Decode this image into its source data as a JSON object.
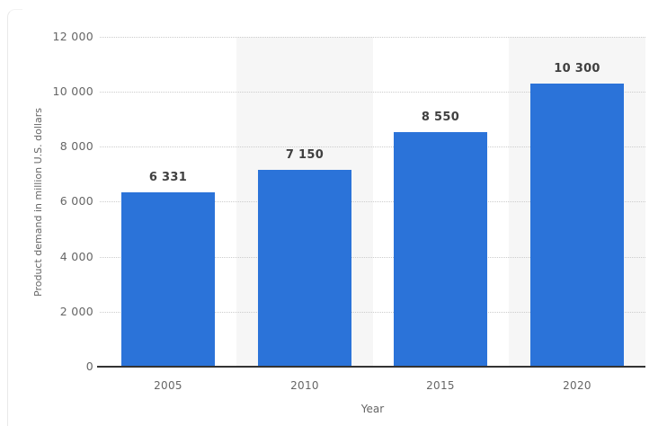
{
  "chart_data": {
    "type": "bar",
    "title": "",
    "categories": [
      "2005",
      "2010",
      "2015",
      "2020"
    ],
    "values": [
      6331,
      7150,
      8550,
      10300
    ],
    "value_labels": [
      "6 331",
      "7 150",
      "8 550",
      "10 300"
    ],
    "xlabel": "Year",
    "ylabel": "Product demand in million U.S. dollars",
    "ylim": [
      0,
      12000
    ],
    "ytick_step": 2000,
    "ytick_labels": [
      "0",
      "2 000",
      "4 000",
      "6 000",
      "8 000",
      "10 000",
      "12 000"
    ],
    "legend": false,
    "grid": "horizontal-dotted",
    "alt_band_columns": [
      1,
      3
    ],
    "colors": {
      "bar": "#2b73d9",
      "alt_band": "#f6f6f6",
      "gridline": "#cccccc",
      "axis_line": "#333333",
      "tick_text": "#666666",
      "value_label_text": "#404040"
    }
  }
}
